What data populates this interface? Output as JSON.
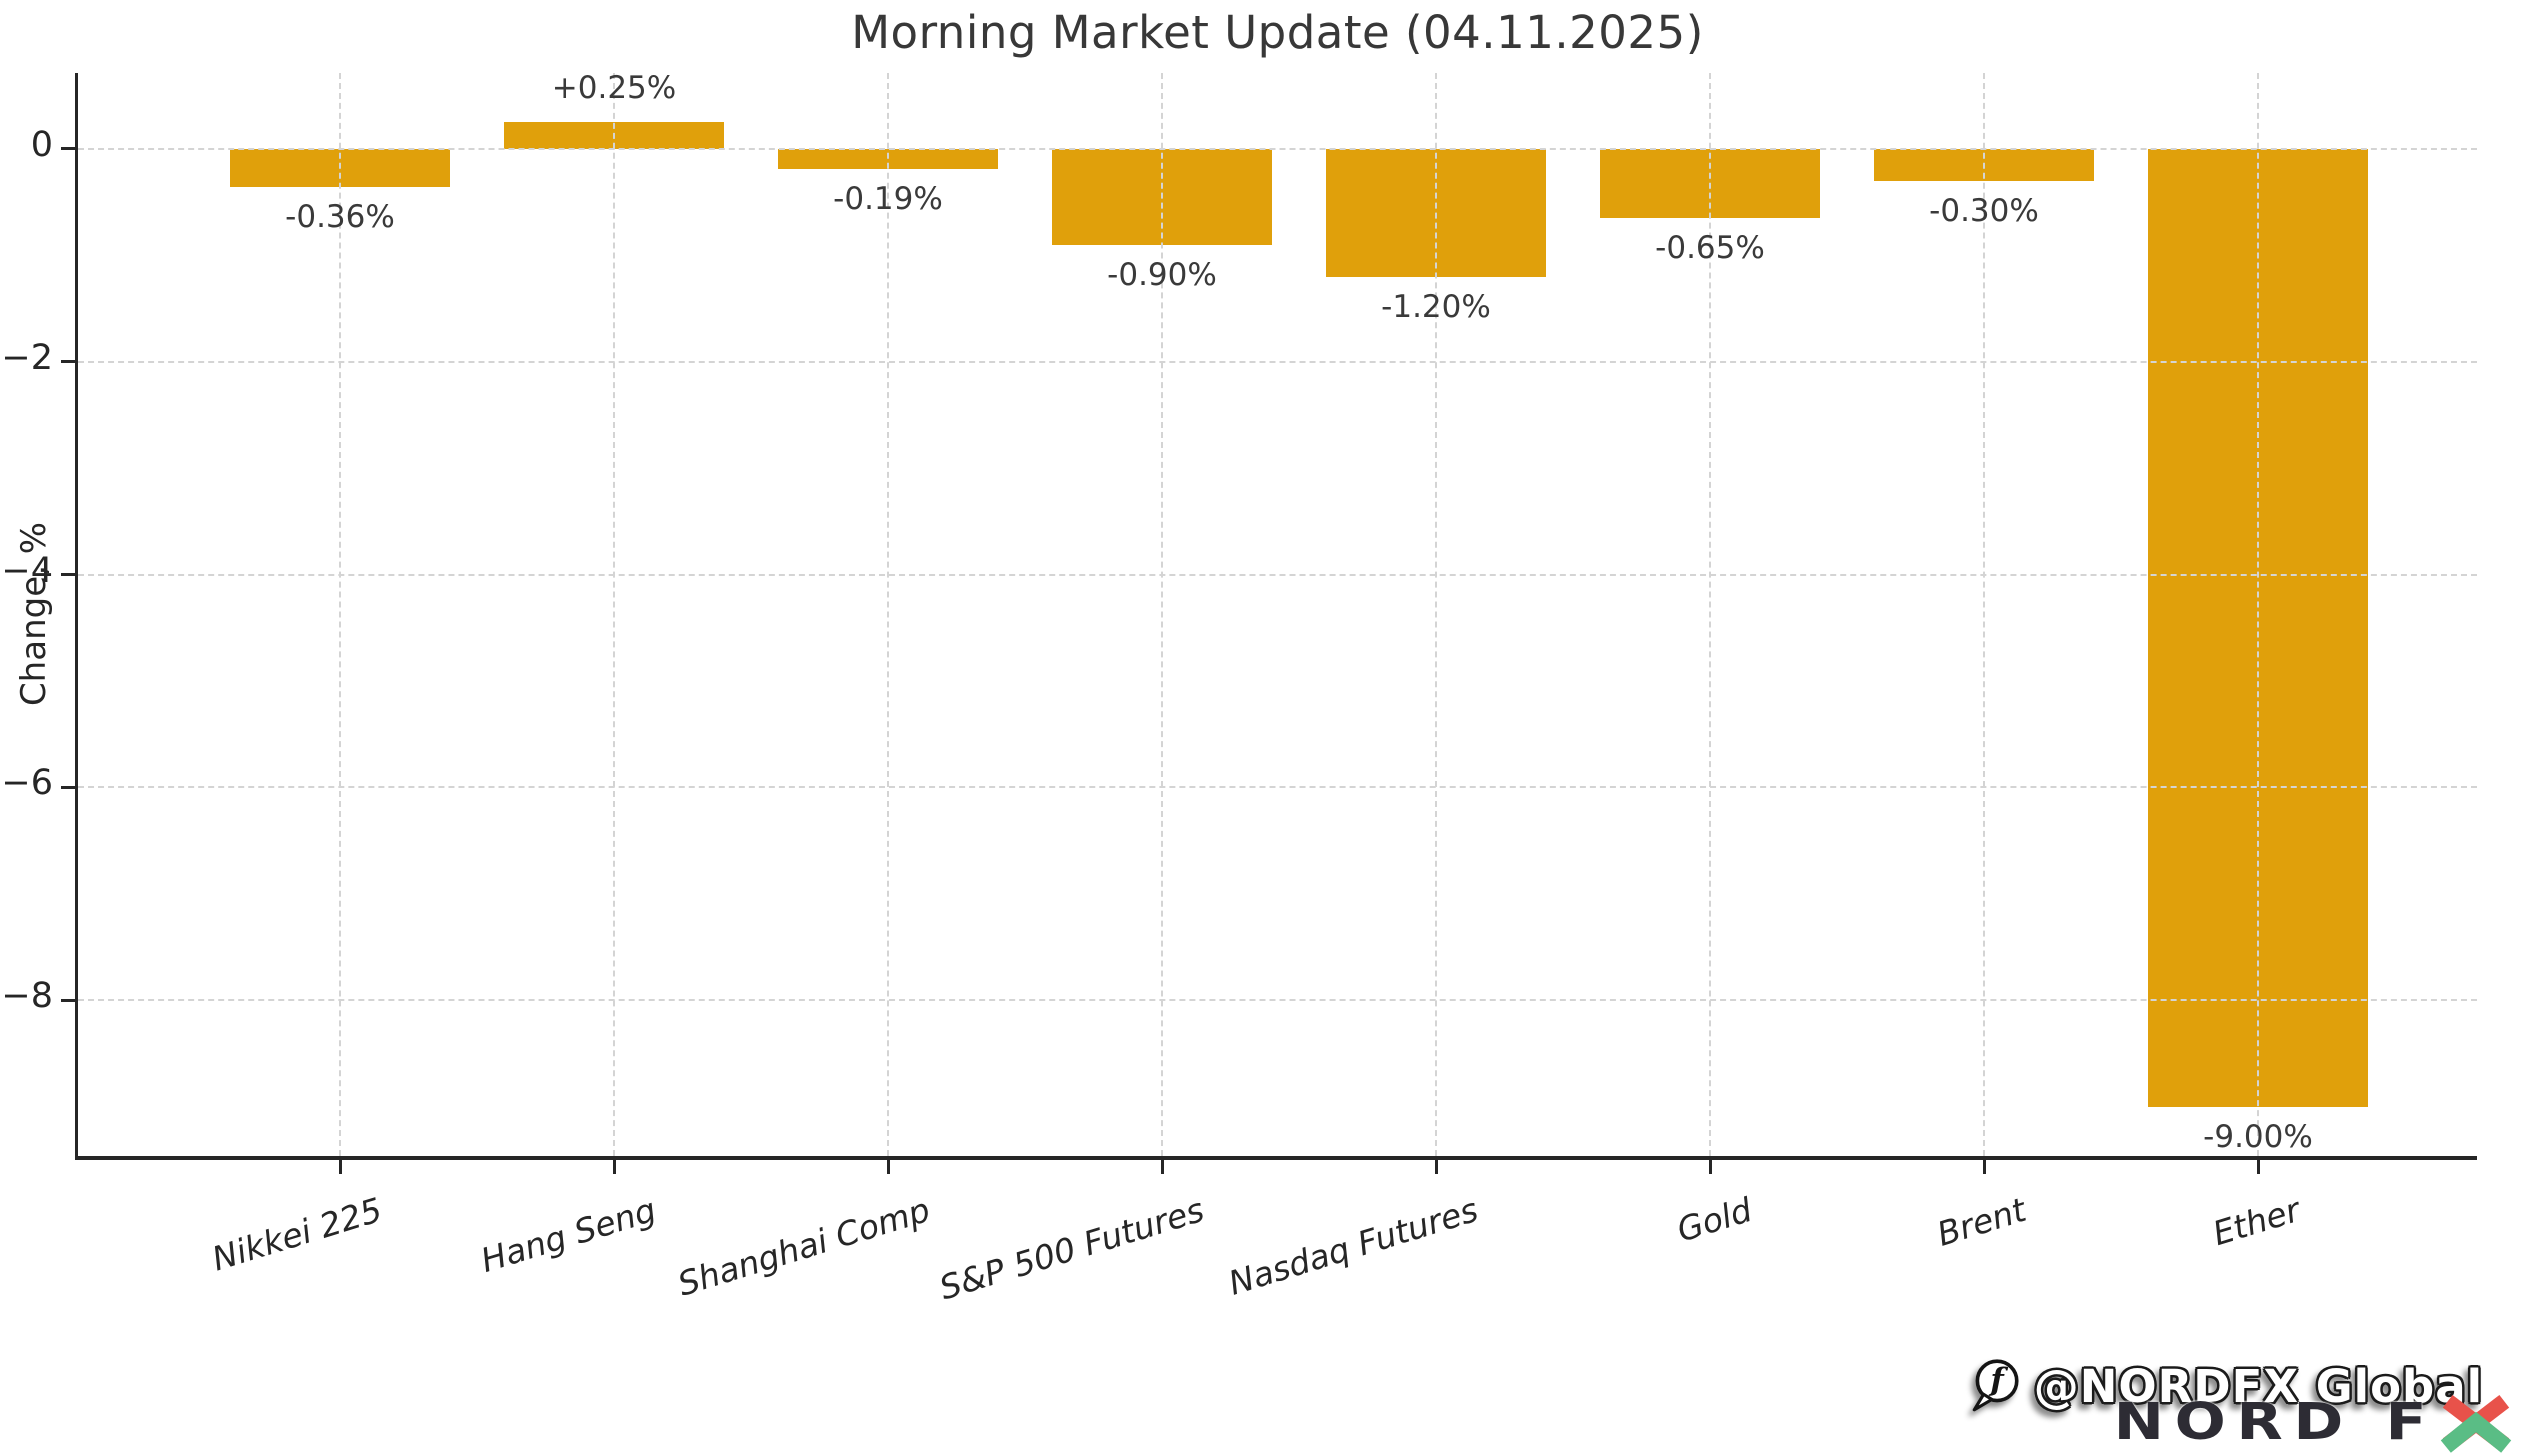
{
  "title": "Morning Market Update (04.11.2025)",
  "chart_data": {
    "type": "bar",
    "title": "Morning Market Update (04.11.2025)",
    "categories": [
      "Nikkei 225",
      "Hang Seng",
      "Shanghai Comp",
      "S&P 500 Futures",
      "Nasdaq Futures",
      "Gold",
      "Brent",
      "Ether"
    ],
    "values": [
      -0.36,
      0.25,
      -0.19,
      -0.9,
      -1.2,
      -0.65,
      -0.3,
      -9.0
    ],
    "bar_labels": [
      "-0.36%",
      "+0.25%",
      "-0.19%",
      "-0.90%",
      "-1.20%",
      "-0.65%",
      "-0.30%",
      "-9.00%"
    ],
    "xlabel": "",
    "ylabel": "Change, %",
    "yticks": [
      0,
      -2,
      -4,
      -6,
      -8
    ],
    "ytick_labels": [
      "0",
      "−2",
      "−4",
      "−6",
      "−8"
    ],
    "ylim": [
      -9.4625,
      0.7125
    ],
    "grid": true,
    "grid_style": "dashed",
    "legend_position": "none",
    "bar_color": "#E0A00B",
    "value_label_color": "#3a3a3a",
    "axis_color": "#262626",
    "grid_color": "#d4d4d4"
  },
  "watermark": {
    "facebook_handle": "@NORDFX Global",
    "logo_text": "NORD F",
    "logo_x": "X",
    "logo_color": "#2d2c34",
    "logo_x_red": "#E8524A",
    "logo_x_green": "#5ABD85"
  }
}
